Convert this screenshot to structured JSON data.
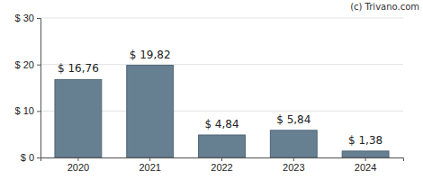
{
  "chart_data": {
    "type": "bar",
    "annotations": [
      "(c) Trivano.com"
    ],
    "categories": [
      "2020",
      "2021",
      "2022",
      "2023",
      "2024"
    ],
    "values": [
      16.76,
      19.82,
      4.84,
      5.84,
      1.38
    ],
    "value_labels": [
      "$ 16,76",
      "$ 19,82",
      "$ 4,84",
      "$ 5,84",
      "$ 1,38"
    ],
    "data_labels": true,
    "color": "#667f91",
    "ylim": [
      0,
      30
    ],
    "yticks": [
      {
        "value": 0,
        "label": "$ 0"
      },
      {
        "value": 10,
        "label": "$ 10"
      },
      {
        "value": 20,
        "label": "$ 20"
      },
      {
        "value": 30,
        "label": "$ 30"
      }
    ],
    "grid": true
  }
}
